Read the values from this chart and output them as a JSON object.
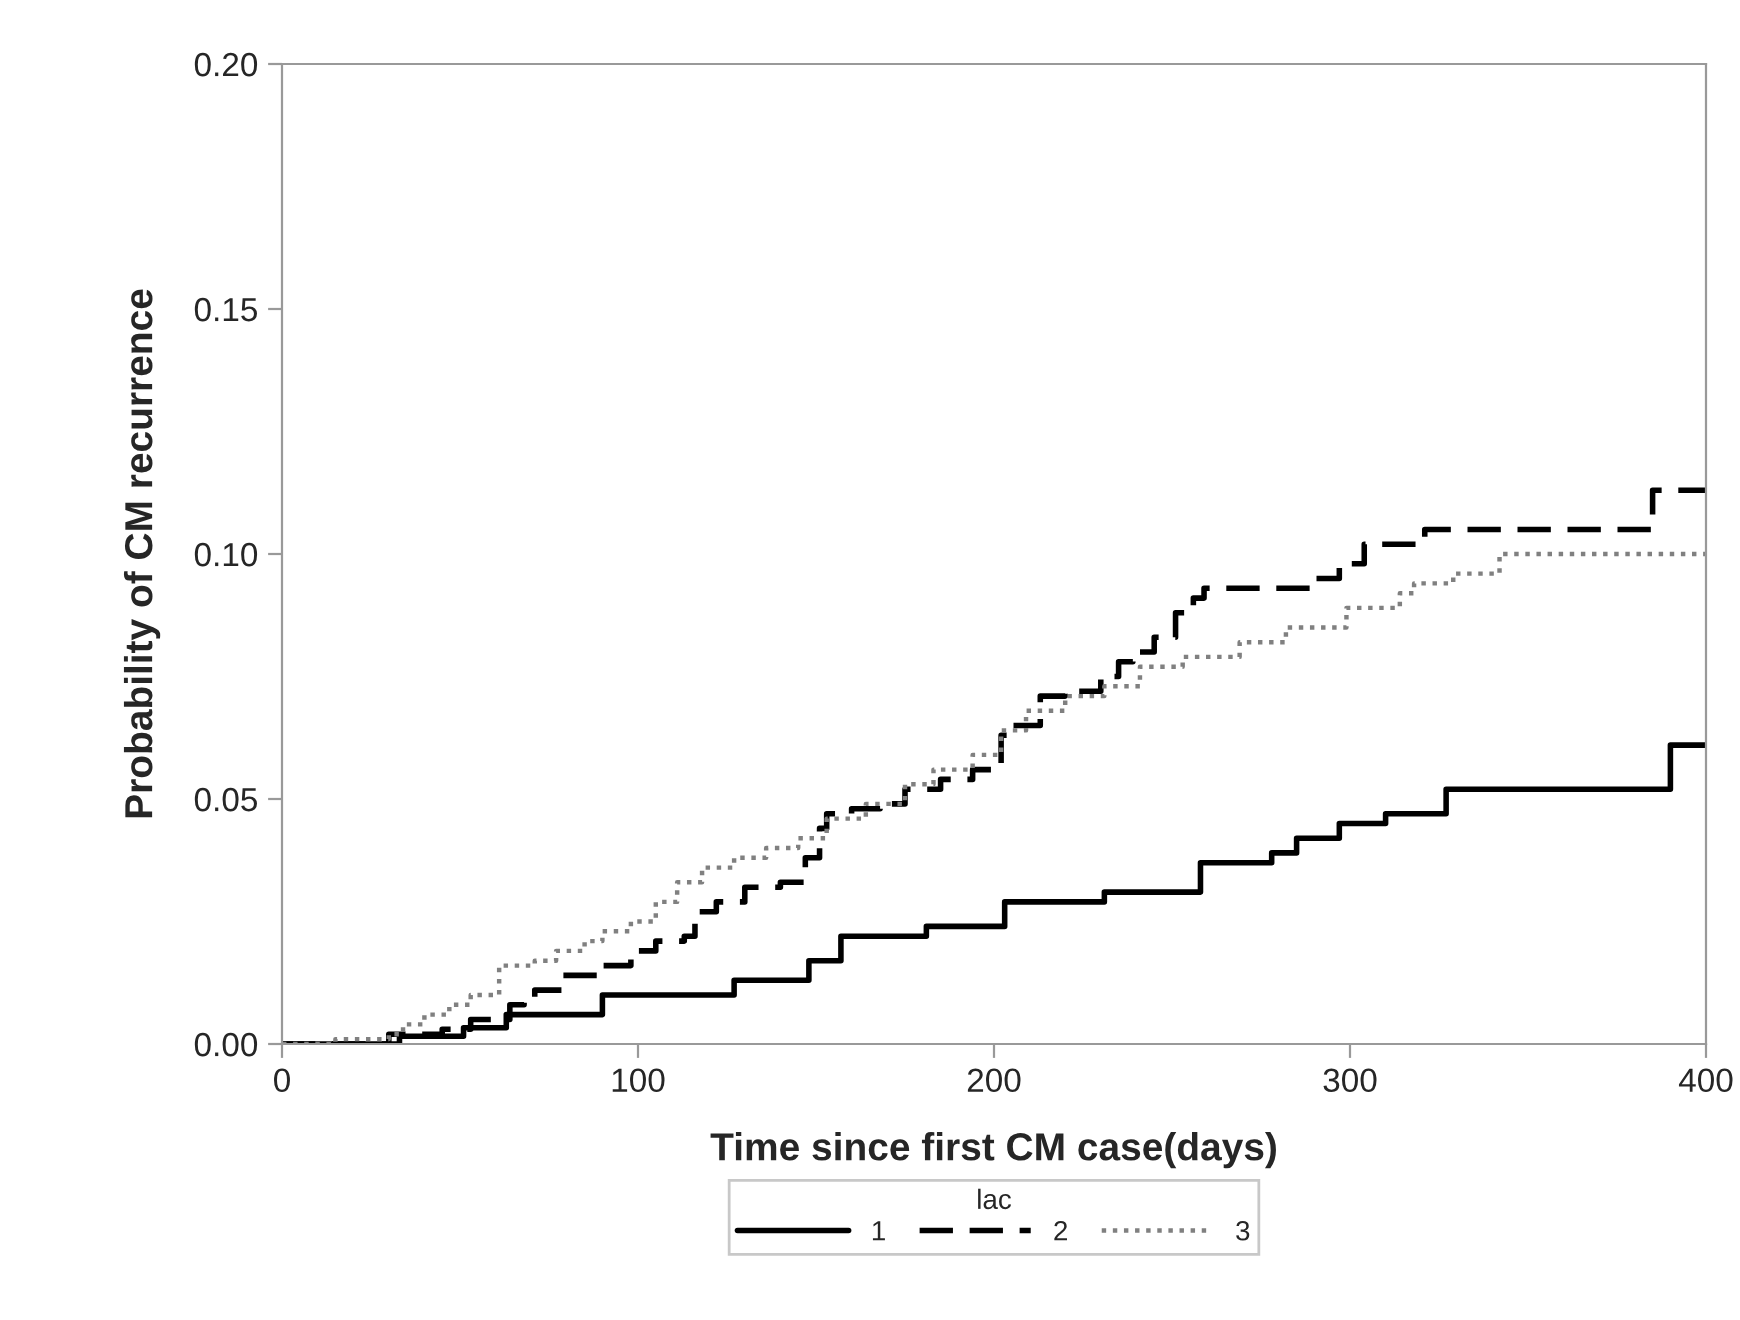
{
  "chart_data": {
    "type": "step",
    "xlabel": "Time since first CM case(days)",
    "ylabel": "Probability of CM recurrence",
    "legend_title": "lac",
    "legend": "bottom",
    "grid": false,
    "xlim": [
      0,
      400
    ],
    "xticks": [
      0,
      100,
      200,
      300,
      400
    ],
    "ylim": [
      0,
      0.2
    ],
    "yticks": [
      {
        "value": 0,
        "label": "0.00"
      },
      {
        "value": 0.05,
        "label": "0.05"
      },
      {
        "value": 0.1,
        "label": "0.10"
      },
      {
        "value": 0.15,
        "label": "0.15"
      },
      {
        "value": 0.2,
        "label": "0.20"
      }
    ],
    "series": [
      {
        "name": "1",
        "color": "#000000",
        "line_style": "solid",
        "x": [
          0,
          33,
          51,
          63,
          90,
          127,
          148,
          157,
          181,
          203,
          231,
          258,
          278,
          285,
          297,
          310,
          327,
          390,
          400
        ],
        "values": [
          0,
          0.0016,
          0.0033,
          0.006,
          0.01,
          0.013,
          0.017,
          0.022,
          0.024,
          0.029,
          0.031,
          0.037,
          0.039,
          0.042,
          0.045,
          0.047,
          0.052,
          0.061,
          0.061
        ]
      },
      {
        "name": "2",
        "color": "#000000",
        "line_style": "dashed",
        "x": [
          0,
          30,
          45,
          53,
          64,
          68,
          71,
          79,
          90,
          98,
          105,
          113,
          116,
          122,
          130,
          140,
          147,
          151,
          153,
          160,
          168,
          175,
          185,
          194,
          202,
          205,
          213,
          220,
          230,
          235,
          239,
          245,
          251,
          256,
          259,
          290,
          297,
          304,
          321,
          385,
          400
        ],
        "values": [
          0,
          0.002,
          0.003,
          0.005,
          0.008,
          0.009,
          0.011,
          0.014,
          0.016,
          0.019,
          0.021,
          0.022,
          0.027,
          0.029,
          0.032,
          0.033,
          0.038,
          0.044,
          0.047,
          0.048,
          0.049,
          0.052,
          0.054,
          0.056,
          0.063,
          0.065,
          0.071,
          0.072,
          0.075,
          0.078,
          0.08,
          0.083,
          0.088,
          0.091,
          0.093,
          0.095,
          0.098,
          0.102,
          0.105,
          0.113,
          0.113
        ]
      },
      {
        "name": "3",
        "color": "#808080",
        "line_style": "dotted",
        "x": [
          0,
          15,
          30,
          34,
          40,
          47,
          53,
          61,
          71,
          77,
          85,
          90,
          98,
          105,
          111,
          118,
          127,
          136,
          145,
          153,
          164,
          175,
          183,
          194,
          202,
          209,
          220,
          231,
          241,
          253,
          269,
          282,
          299,
          314,
          318,
          329,
          342,
          400
        ],
        "values": [
          0,
          0.001,
          0.002,
          0.004,
          0.006,
          0.008,
          0.01,
          0.016,
          0.017,
          0.019,
          0.021,
          0.023,
          0.025,
          0.029,
          0.033,
          0.036,
          0.038,
          0.04,
          0.042,
          0.046,
          0.049,
          0.053,
          0.056,
          0.059,
          0.064,
          0.068,
          0.071,
          0.073,
          0.077,
          0.079,
          0.082,
          0.085,
          0.089,
          0.092,
          0.094,
          0.096,
          0.1,
          0.1
        ]
      }
    ]
  }
}
